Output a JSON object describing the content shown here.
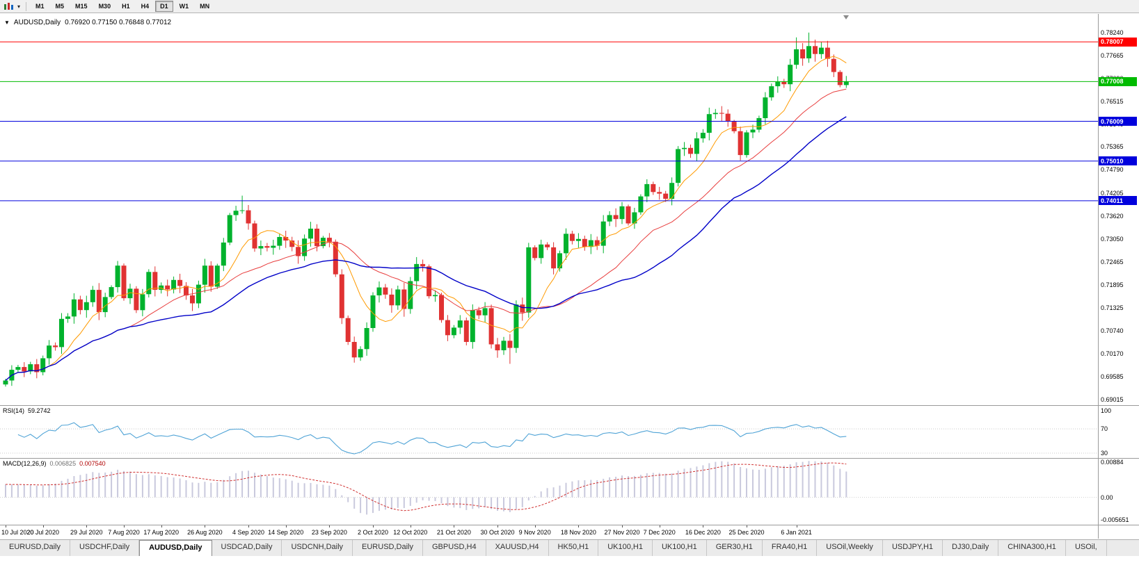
{
  "toolbar": {
    "timeframes": [
      "M1",
      "M5",
      "M15",
      "M30",
      "H1",
      "H4",
      "D1",
      "W1",
      "MN"
    ],
    "active_timeframe": "D1"
  },
  "chart": {
    "symbol_label": "AUDUSD,Daily",
    "ohlc": "0.76920 0.77150 0.76848 0.77012"
  },
  "tabs": {
    "items": [
      "EURUSD,Daily",
      "USDCHF,Daily",
      "AUDUSD,Daily",
      "USDCAD,Daily",
      "USDCNH,Daily",
      "EURUSD,Daily",
      "GBPUSD,H4",
      "XAUUSD,H4",
      "HK50,H1",
      "UK100,H1",
      "UK100,H1",
      "GER30,H1",
      "FRA40,H1",
      "USOil,Weekly",
      "USDJPY,H1",
      "DJ30,Daily",
      "CHINA300,H1",
      "USOil,"
    ],
    "active_index": 2
  },
  "chart_data": {
    "type": "candlestick",
    "title": "AUDUSD,Daily",
    "symbol": "AUDUSD",
    "period": "Daily",
    "current_open": "0.76920",
    "current_high": "0.77150",
    "current_low": "0.76848",
    "current_close": "0.77012",
    "y_domain": [
      0.6887,
      0.7871
    ],
    "first_open": 0.6939,
    "wick": 0.0013,
    "bull_color": "#00b22d",
    "bear_color": "#e03232",
    "closes": [
      0.6949,
      0.6976,
      0.6983,
      0.6972,
      0.699,
      0.697,
      0.7005,
      0.7037,
      0.7033,
      0.7104,
      0.711,
      0.7153,
      0.7126,
      0.7146,
      0.7177,
      0.7121,
      0.7159,
      0.7184,
      0.7238,
      0.7156,
      0.718,
      0.7126,
      0.7166,
      0.7222,
      0.7177,
      0.7188,
      0.7178,
      0.7202,
      0.7187,
      0.7163,
      0.7143,
      0.719,
      0.7238,
      0.7185,
      0.7238,
      0.7296,
      0.7365,
      0.7376,
      0.7377,
      0.7344,
      0.7281,
      0.7287,
      0.7283,
      0.7288,
      0.731,
      0.7301,
      0.7285,
      0.7262,
      0.7306,
      0.7331,
      0.7287,
      0.7308,
      0.7298,
      0.7216,
      0.7106,
      0.7046,
      0.7007,
      0.7028,
      0.7081,
      0.7163,
      0.7183,
      0.7165,
      0.7138,
      0.7178,
      0.7129,
      0.7199,
      0.7242,
      0.7236,
      0.7161,
      0.7164,
      0.7101,
      0.7063,
      0.7082,
      0.71,
      0.7046,
      0.7126,
      0.7113,
      0.7131,
      0.704,
      0.7025,
      0.7049,
      0.7031,
      0.714,
      0.712,
      0.7284,
      0.7257,
      0.7291,
      0.7284,
      0.7231,
      0.7269,
      0.7318,
      0.73,
      0.7305,
      0.7285,
      0.7302,
      0.7288,
      0.7349,
      0.7365,
      0.7355,
      0.7387,
      0.7344,
      0.7372,
      0.7412,
      0.7443,
      0.7423,
      0.7419,
      0.7406,
      0.7446,
      0.7531,
      0.7534,
      0.7519,
      0.7558,
      0.7572,
      0.7619,
      0.7622,
      0.762,
      0.76,
      0.7576,
      0.7516,
      0.7573,
      0.758,
      0.7609,
      0.7661,
      0.7689,
      0.77,
      0.7694,
      0.7743,
      0.7782,
      0.7759,
      0.779,
      0.777,
      0.7786,
      0.7758,
      0.7725,
      0.7692,
      0.7701
    ],
    "overrides": {
      "38": {
        "h": 0.7414
      },
      "56": {
        "l": 0.6994
      },
      "81": {
        "l": 0.6991
      },
      "127": {
        "h": 0.7812
      },
      "129": {
        "h": 0.7824
      },
      "131": {
        "h": 0.78
      },
      "135": {
        "h": 0.7715,
        "l": 0.76848
      }
    },
    "price_ticks": [
      "0.78240",
      "0.77665",
      "0.77090",
      "0.76515",
      "0.75940",
      "0.75365",
      "0.74790",
      "0.74205",
      "0.73620",
      "0.73050",
      "0.72465",
      "0.71895",
      "0.71325",
      "0.70740",
      "0.70170",
      "0.69585",
      "0.69015"
    ],
    "hlines": [
      {
        "price": 0.78007,
        "label": "0.78007",
        "color": "#ff0000"
      },
      {
        "price": 0.77008,
        "label": "0.77008",
        "color": "#00bb00"
      },
      {
        "price": 0.76009,
        "label": "0.76009",
        "color": "#0000dd"
      },
      {
        "price": 0.7501,
        "label": "0.75010",
        "color": "#0000dd"
      },
      {
        "price": 0.74011,
        "label": "0.74011",
        "color": "#0000dd"
      }
    ],
    "date_ticks": [
      {
        "label": "10 Jul 2020",
        "bar": 0
      },
      {
        "label": "20 Jul 2020",
        "bar": 6
      },
      {
        "label": "29 Jul 2020",
        "bar": 13
      },
      {
        "label": "7 Aug 2020",
        "bar": 19
      },
      {
        "label": "17 Aug 2020",
        "bar": 25
      },
      {
        "label": "26 Aug 2020",
        "bar": 32
      },
      {
        "label": "4 Sep 2020",
        "bar": 39
      },
      {
        "label": "14 Sep 2020",
        "bar": 45
      },
      {
        "label": "23 Sep 2020",
        "bar": 52
      },
      {
        "label": "2 Oct 2020",
        "bar": 59
      },
      {
        "label": "12 Oct 2020",
        "bar": 65
      },
      {
        "label": "21 Oct 2020",
        "bar": 72
      },
      {
        "label": "30 Oct 2020",
        "bar": 79
      },
      {
        "label": "9 Nov 2020",
        "bar": 85
      },
      {
        "label": "18 Nov 2020",
        "bar": 92
      },
      {
        "label": "27 Nov 2020",
        "bar": 99
      },
      {
        "label": "7 Dec 2020",
        "bar": 105
      },
      {
        "label": "16 Dec 2020",
        "bar": 112
      },
      {
        "label": "25 Dec 2020",
        "bar": 119
      },
      {
        "label": "6 Jan 2021",
        "bar": 127
      }
    ],
    "ma_lines": [
      {
        "period": 8,
        "color": "#ff9a00",
        "width": 1
      },
      {
        "period": 21,
        "color": "#e83d3d",
        "width": 1
      },
      {
        "period": 34,
        "color": "#0000c8",
        "width": 1.4
      }
    ],
    "indicators": {
      "rsi": {
        "label": "RSI(14)",
        "value": "59.2742",
        "period": 14,
        "levels": [
          70,
          30
        ],
        "axis_labels": [
          100,
          70,
          30
        ],
        "color": "#4fa3d6"
      },
      "macd": {
        "label": "MACD(12,26,9)",
        "value_main": "0.006825",
        "value_signal": "0.007540",
        "fast": 12,
        "slow": 26,
        "signal": 9,
        "seed_offset": 0.0035,
        "bar_color": "#c9c9dd",
        "signal_color": "#d03030",
        "axis": [
          {
            "text": "0.00884",
            "value": 0.00884
          },
          {
            "text": "0.00",
            "value": 0
          },
          {
            "text": "-0.005651",
            "value": -0.005651
          }
        ]
      }
    }
  }
}
